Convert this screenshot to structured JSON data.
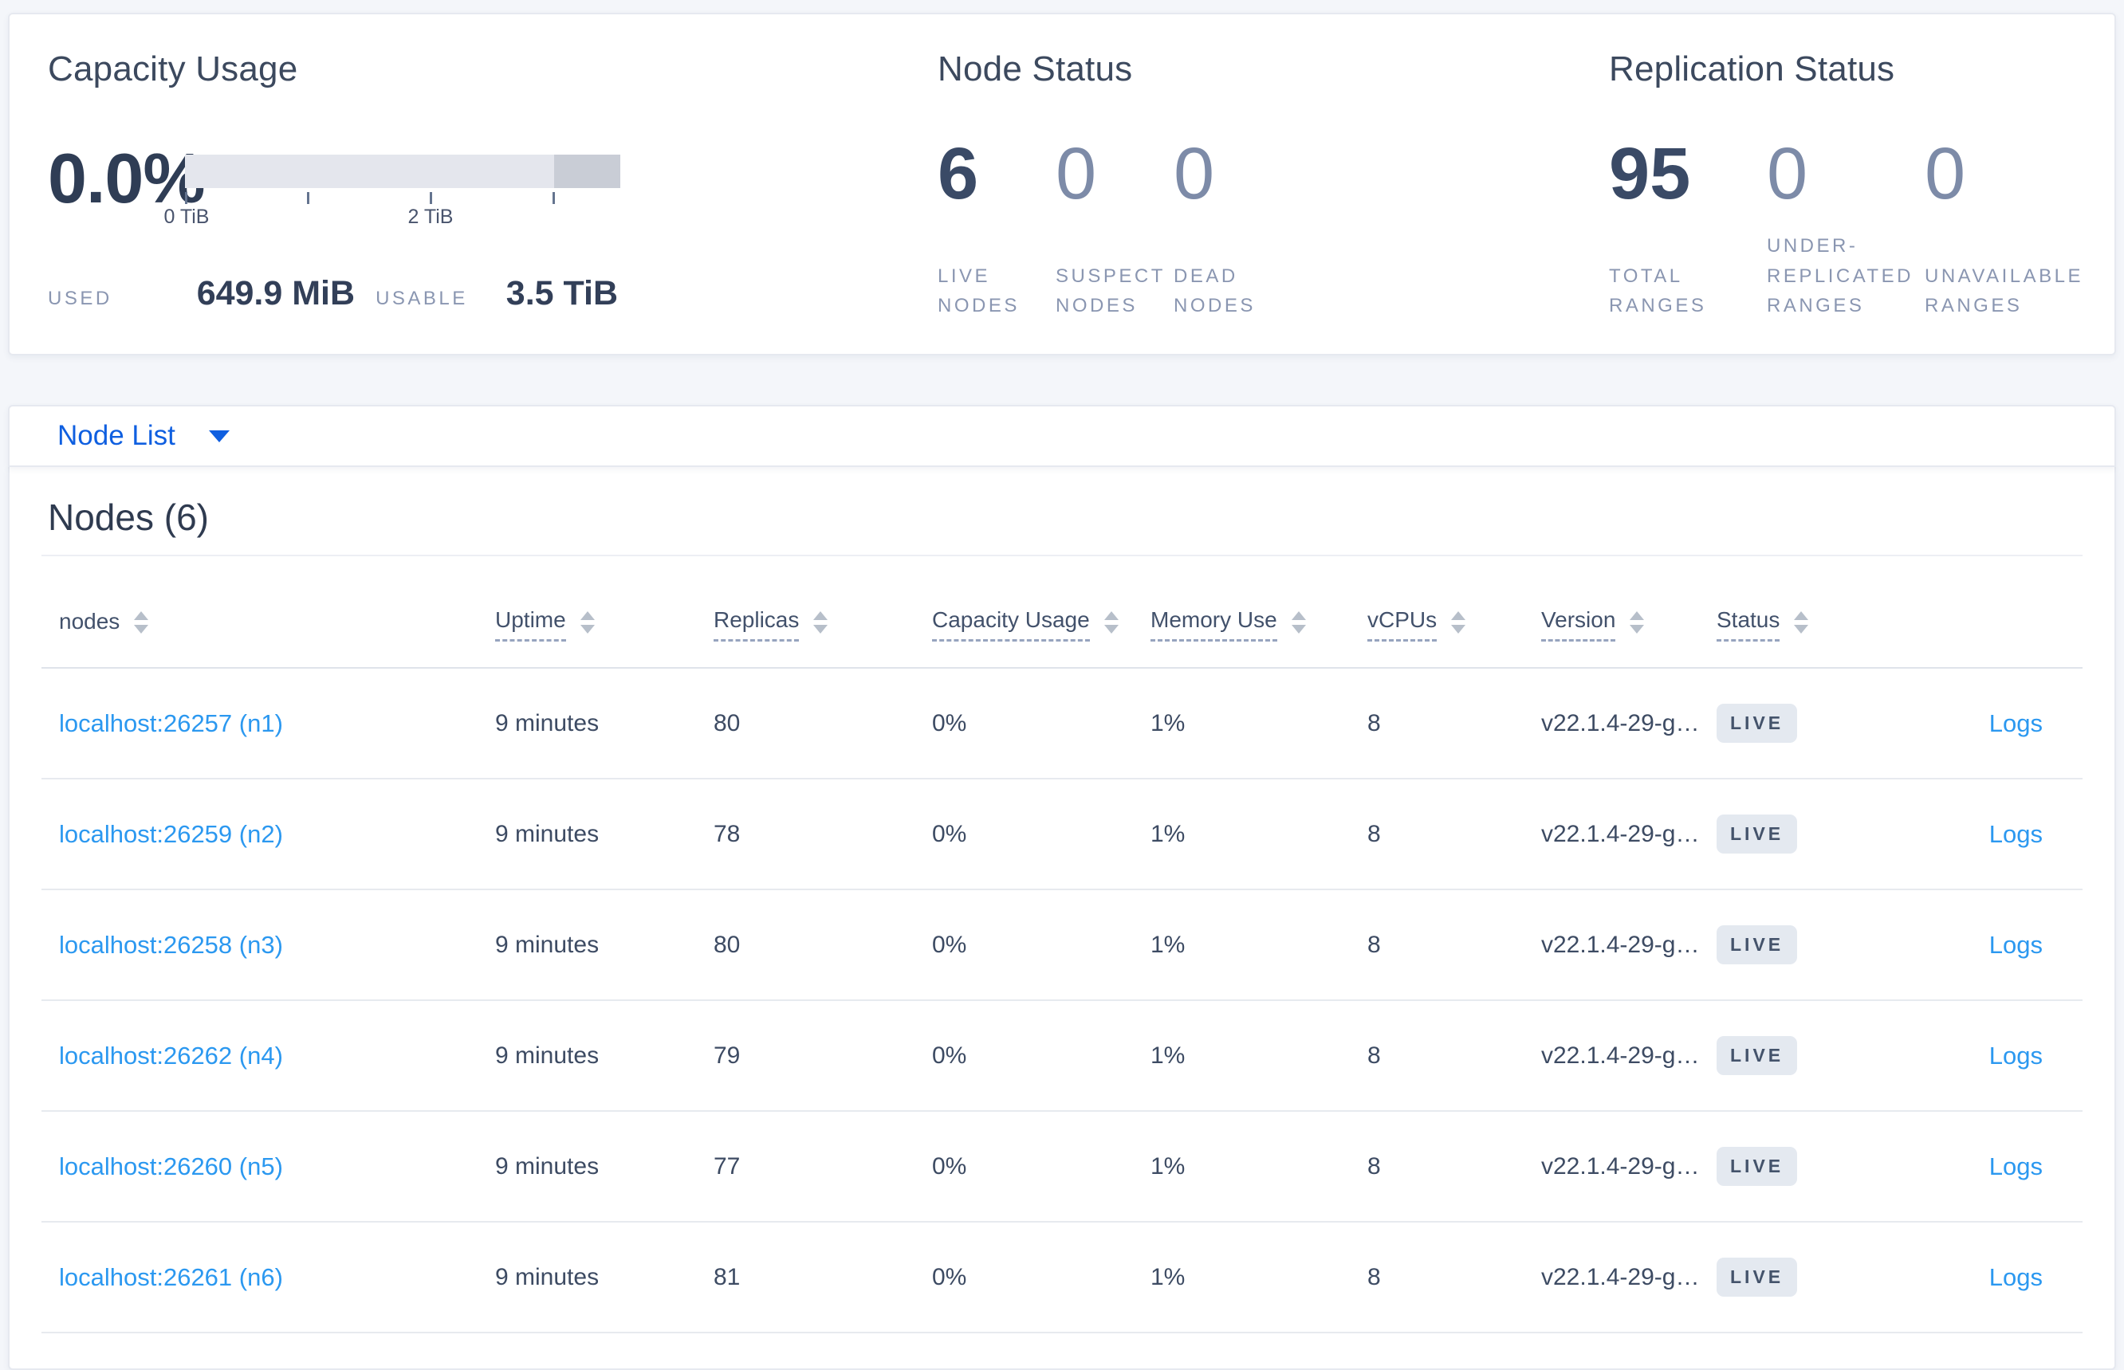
{
  "summary": {
    "capacity": {
      "title": "Capacity Usage",
      "percent": "0.0%",
      "axis_ticks": [
        "0 TiB",
        "2 TiB"
      ],
      "used_label": "USED",
      "used_value": "649.9 MiB",
      "usable_label": "USABLE",
      "usable_value": "3.5 TiB"
    },
    "node_status": {
      "title": "Node Status",
      "stats": [
        {
          "value": "6",
          "label": "LIVE NODES"
        },
        {
          "value": "0",
          "label": "SUSPECT NODES"
        },
        {
          "value": "0",
          "label": "DEAD NODES"
        }
      ]
    },
    "replication": {
      "title": "Replication Status",
      "stats": [
        {
          "value": "95",
          "label": "TOTAL RANGES"
        },
        {
          "value": "0",
          "label": "UNDER-REPLICATED RANGES"
        },
        {
          "value": "0",
          "label": "UNAVAILABLE RANGES"
        }
      ]
    }
  },
  "view_selector": {
    "label": "Node List"
  },
  "table": {
    "title": "Nodes (6)",
    "columns": [
      {
        "label": "nodes"
      },
      {
        "label": "Uptime"
      },
      {
        "label": "Replicas"
      },
      {
        "label": "Capacity Usage"
      },
      {
        "label": "Memory Use"
      },
      {
        "label": "vCPUs"
      },
      {
        "label": "Version"
      },
      {
        "label": "Status"
      }
    ],
    "rows": [
      {
        "address": "localhost:26257 (n1)",
        "uptime": "9 minutes",
        "replicas": "80",
        "capacity": "0%",
        "memory": "1%",
        "vcpus": "8",
        "version": "v22.1.4-29-g…",
        "status": "LIVE",
        "logs": "Logs"
      },
      {
        "address": "localhost:26259 (n2)",
        "uptime": "9 minutes",
        "replicas": "78",
        "capacity": "0%",
        "memory": "1%",
        "vcpus": "8",
        "version": "v22.1.4-29-g…",
        "status": "LIVE",
        "logs": "Logs"
      },
      {
        "address": "localhost:26258 (n3)",
        "uptime": "9 minutes",
        "replicas": "80",
        "capacity": "0%",
        "memory": "1%",
        "vcpus": "8",
        "version": "v22.1.4-29-g…",
        "status": "LIVE",
        "logs": "Logs"
      },
      {
        "address": "localhost:26262 (n4)",
        "uptime": "9 minutes",
        "replicas": "79",
        "capacity": "0%",
        "memory": "1%",
        "vcpus": "8",
        "version": "v22.1.4-29-g…",
        "status": "LIVE",
        "logs": "Logs"
      },
      {
        "address": "localhost:26260 (n5)",
        "uptime": "9 minutes",
        "replicas": "77",
        "capacity": "0%",
        "memory": "1%",
        "vcpus": "8",
        "version": "v22.1.4-29-g…",
        "status": "LIVE",
        "logs": "Logs"
      },
      {
        "address": "localhost:26261 (n6)",
        "uptime": "9 minutes",
        "replicas": "81",
        "capacity": "0%",
        "memory": "1%",
        "vcpus": "8",
        "version": "v22.1.4-29-g…",
        "status": "LIVE",
        "logs": "Logs"
      }
    ]
  }
}
